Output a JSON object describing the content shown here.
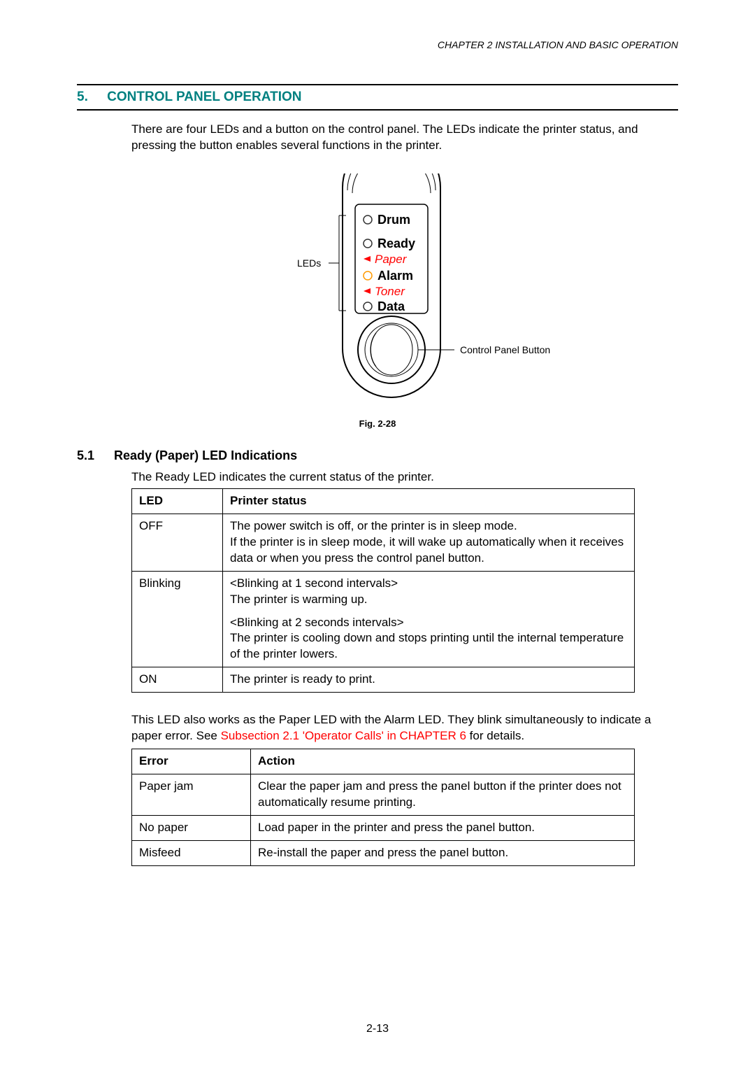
{
  "header": "CHAPTER 2  INSTALLATION AND BASIC OPERATION",
  "section": {
    "num": "5.",
    "title": "CONTROL PANEL OPERATION"
  },
  "intro": "There are four LEDs and a button on the control panel.  The LEDs indicate the printer status, and pressing the button enables several functions in the printer.",
  "diagram": {
    "leds_label": "LEDs",
    "button_label": "Control Panel Button",
    "items": {
      "drum": "Drum",
      "ready": "Ready",
      "paper": "Paper",
      "alarm": "Alarm",
      "toner": "Toner",
      "data": "Data"
    },
    "colors": {
      "drum_led": "#333333",
      "ready_led": "#333333",
      "alarm_led": "#ff9900",
      "data_led": "#333333",
      "red_text": "#ff0000",
      "outline": "#000000"
    }
  },
  "fig_caption": "Fig. 2-28",
  "subsection": {
    "num": "5.1",
    "title": "Ready (Paper) LED Indications"
  },
  "sub_desc": "The Ready LED indicates the current status of the printer.",
  "table1": {
    "headers": [
      "LED",
      "Printer status"
    ],
    "rows": [
      {
        "led": "OFF",
        "status_html": "The power switch is off, or the printer is in sleep mode.<br>If the printer is in sleep mode, it will wake up automatically when it receives data or when you press the control panel button."
      },
      {
        "led": "Blinking",
        "status_html": "&lt;Blinking at 1 second intervals&gt;<br>The printer is warming up.<div style='height:10px'></div>&lt;Blinking at 2 seconds intervals&gt;<br>The printer is cooling down and stops printing until the internal temperature of the printer lowers."
      },
      {
        "led": "ON",
        "status_html": "The printer is ready to print."
      }
    ]
  },
  "note": {
    "before": "This LED also works as the Paper LED with the Alarm LED.  They blink simultaneously to indicate a paper error.  See ",
    "link": "Subsection 2.1 'Operator Calls' in CHAPTER 6",
    "after": " for details."
  },
  "table2": {
    "headers": [
      "Error",
      "Action"
    ],
    "rows": [
      {
        "error": "Paper jam",
        "action": "Clear the paper jam and press the panel button if the printer does not automatically resume printing."
      },
      {
        "error": "No paper",
        "action": "Load paper in the printer and press the panel button."
      },
      {
        "error": "Misfeed",
        "action": "Re-install the paper and press the panel button."
      }
    ]
  },
  "page_num": "2-13"
}
